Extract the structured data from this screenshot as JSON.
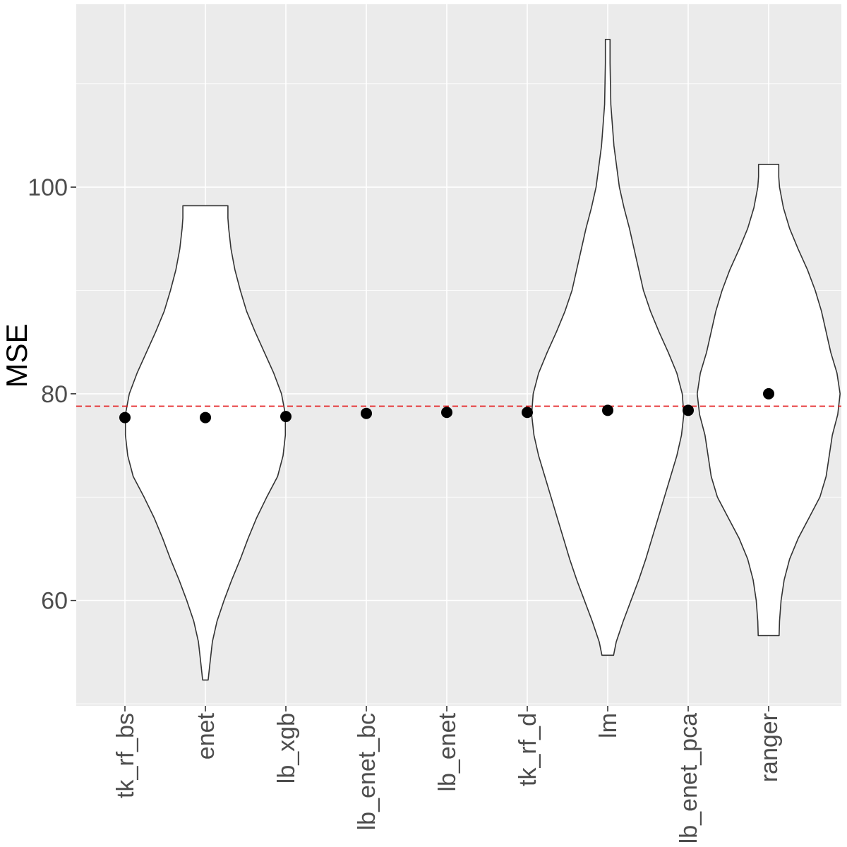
{
  "chart_data": {
    "type": "violin",
    "categories": [
      "tk_rf_bs",
      "enet",
      "lb_xgb",
      "lb_enet_bc",
      "lb_enet",
      "tk_rf_d",
      "lm",
      "lb_enet_pca",
      "ranger"
    ],
    "points": [
      77.7,
      77.7,
      77.8,
      78.1,
      78.2,
      78.2,
      78.4,
      78.4,
      80.0
    ],
    "reference_line": 78.8,
    "violins": [
      {
        "category": "enet",
        "min": 52.3,
        "max": 98.2,
        "profile": [
          [
            52.3,
            0.035
          ],
          [
            54,
            0.06
          ],
          [
            56,
            0.09
          ],
          [
            58,
            0.15
          ],
          [
            60,
            0.24
          ],
          [
            62,
            0.34
          ],
          [
            64,
            0.45
          ],
          [
            66,
            0.55
          ],
          [
            68,
            0.66
          ],
          [
            70,
            0.79
          ],
          [
            72,
            0.93
          ],
          [
            74,
            1.0
          ],
          [
            76,
            1.03
          ],
          [
            78,
            1.03
          ],
          [
            80,
            0.98
          ],
          [
            82,
            0.88
          ],
          [
            84,
            0.76
          ],
          [
            86,
            0.64
          ],
          [
            88,
            0.53
          ],
          [
            90,
            0.45
          ],
          [
            92,
            0.38
          ],
          [
            94,
            0.33
          ],
          [
            96,
            0.3
          ],
          [
            97,
            0.29
          ],
          [
            98.2,
            0.29
          ]
        ]
      },
      {
        "category": "lm",
        "min": 54.7,
        "max": 114.3,
        "profile": [
          [
            54.7,
            0.075
          ],
          [
            56,
            0.11
          ],
          [
            58,
            0.2
          ],
          [
            60,
            0.3
          ],
          [
            62,
            0.4
          ],
          [
            64,
            0.49
          ],
          [
            66,
            0.57
          ],
          [
            68,
            0.65
          ],
          [
            70,
            0.73
          ],
          [
            72,
            0.81
          ],
          [
            74,
            0.89
          ],
          [
            76,
            0.95
          ],
          [
            78,
            0.98
          ],
          [
            80,
            0.96
          ],
          [
            82,
            0.89
          ],
          [
            84,
            0.78
          ],
          [
            86,
            0.66
          ],
          [
            88,
            0.55
          ],
          [
            90,
            0.46
          ],
          [
            92,
            0.4
          ],
          [
            94,
            0.34
          ],
          [
            96,
            0.28
          ],
          [
            98,
            0.21
          ],
          [
            100,
            0.15
          ],
          [
            104,
            0.08
          ],
          [
            108,
            0.04
          ],
          [
            112,
            0.03
          ],
          [
            114.3,
            0.03
          ]
        ]
      },
      {
        "category": "ranger",
        "min": 56.6,
        "max": 102.2,
        "profile": [
          [
            56.6,
            0.135
          ],
          [
            58,
            0.14
          ],
          [
            60,
            0.16
          ],
          [
            62,
            0.2
          ],
          [
            64,
            0.27
          ],
          [
            66,
            0.38
          ],
          [
            68,
            0.52
          ],
          [
            70,
            0.66
          ],
          [
            72,
            0.74
          ],
          [
            74,
            0.78
          ],
          [
            76,
            0.82
          ],
          [
            78,
            0.89
          ],
          [
            80,
            0.92
          ],
          [
            82,
            0.88
          ],
          [
            84,
            0.8
          ],
          [
            86,
            0.74
          ],
          [
            88,
            0.68
          ],
          [
            90,
            0.6
          ],
          [
            92,
            0.5
          ],
          [
            94,
            0.38
          ],
          [
            96,
            0.27
          ],
          [
            98,
            0.19
          ],
          [
            100,
            0.14
          ],
          [
            101,
            0.13
          ],
          [
            102.2,
            0.13
          ]
        ]
      }
    ],
    "title": "",
    "xlabel": "",
    "ylabel": "MSE",
    "ylim": [
      49.8,
      117.7
    ],
    "yticks": [
      60,
      80,
      100
    ],
    "grid": true,
    "colors": {
      "panel": "#ebebeb",
      "grid": "#ffffff",
      "violin_fill": "#ffffff",
      "violin_line": "#333333",
      "points": "#000000",
      "reference": "#e41a1c",
      "tick_text": "#4d4d4d"
    }
  }
}
